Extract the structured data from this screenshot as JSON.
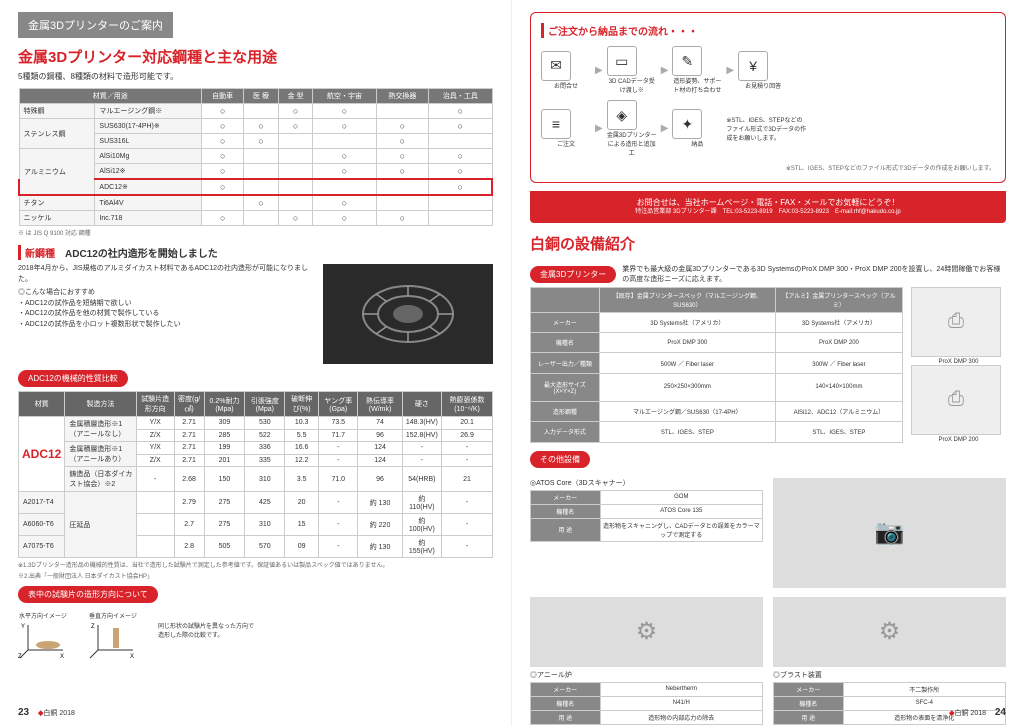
{
  "left": {
    "banner": "金属3Dプリンターのご案内",
    "title": "金属3Dプリンター対応鋼種と主な用途",
    "subtitle": "5種類の鋼種、8種類の材料で造形可能です。",
    "table1": {
      "headers": [
        "材質／用途",
        "自動車",
        "医 療",
        "金 型",
        "航空・宇宙",
        "熱交換器",
        "治具・工具"
      ],
      "rowgroups": [
        {
          "group": "特殊鋼",
          "rows": [
            [
              "マルエージング鋼※",
              "○",
              "",
              "○",
              "○",
              "",
              "○"
            ]
          ]
        },
        {
          "group": "ステンレス鋼",
          "rows": [
            [
              "SUS630(17-4PH)※",
              "○",
              "○",
              "○",
              "○",
              "○",
              "○"
            ],
            [
              "SUS316L",
              "○",
              "○",
              "",
              "",
              "○",
              ""
            ]
          ]
        },
        {
          "group": "アルミニウム",
          "rows": [
            [
              "AlSi10Mg",
              "○",
              "",
              "",
              "○",
              "○",
              "○"
            ],
            [
              "AlSi12※",
              "○",
              "",
              "",
              "○",
              "○",
              "○"
            ],
            [
              "ADC12※",
              "○",
              "",
              "",
              "",
              "",
              "○"
            ]
          ]
        },
        {
          "group": "チタン",
          "rows": [
            [
              "Ti6Al4V",
              "",
              "○",
              "",
              "○",
              "",
              ""
            ]
          ]
        },
        {
          "group": "ニッケル",
          "rows": [
            [
              "Inc.718",
              "○",
              "",
              "○",
              "○",
              "○",
              ""
            ]
          ]
        }
      ],
      "highlight_row": 5,
      "note": "※ は JIS Q 9100 対応 鋼種"
    },
    "section2": {
      "prefix": "新鋼種",
      "title": "ADC12の社内造形を開始しました",
      "text": "2018年4月から、JIS規格のアルミダイカスト材料であるADC12の社内造形が可能になりました。",
      "sub": "◎こんな場合におすすめ",
      "bullets": [
        "・ADC12の試作品を短納期で欲しい",
        "・ADC12の試作品を他の材質で製作している",
        "・ADC12の試作品を小ロット複数形状で製作したい"
      ]
    },
    "tab1": "ADC12の機械的性質比較",
    "table2": {
      "headers": [
        "材質",
        "製造方法",
        "試験片造形方向",
        "密度(g/㎤)",
        "0.2%耐力(Mpa)",
        "引張強度(Mpa)",
        "破断伸び(%)",
        "ヤング率(Gpa)",
        "熱伝導率(W/mk)",
        "硬さ",
        "熱膨張係数(10⁻⁶/K)"
      ],
      "material": "ADC12",
      "rows": [
        [
          "金属積層造形※1（アニールなし）",
          "Y/X",
          "2.71",
          "309",
          "530",
          "10.3",
          "73.5",
          "74",
          "148.3(HV)",
          "20.1"
        ],
        [
          "",
          "Z/X",
          "2.71",
          "285",
          "522",
          "5.5",
          "71.7",
          "96",
          "152.8(HV)",
          "26.9"
        ],
        [
          "金属積層造形※1（アニールあり）",
          "Y/X",
          "2.71",
          "199",
          "336",
          "16.6",
          "-",
          "124",
          "-",
          "-"
        ],
        [
          "",
          "Z/X",
          "2.71",
          "201",
          "335",
          "12.2",
          "-",
          "124",
          "-",
          "-"
        ],
        [
          "鋳造品（日本ダイカスト協会）※2",
          "-",
          "2.68",
          "150",
          "310",
          "3.5",
          "71.0",
          "96",
          "54(HRB)",
          "21"
        ]
      ],
      "extra": [
        [
          "A2017-T4",
          "圧延品",
          "",
          "2.79",
          "275",
          "425",
          "20",
          "-",
          "約 130",
          "約110(HV)",
          "-"
        ],
        [
          "A6060-T6",
          "",
          "",
          "2.7",
          "275",
          "310",
          "15",
          "-",
          "約 220",
          "約100(HV)",
          "-"
        ],
        [
          "A7075-T6",
          "",
          "",
          "2.8",
          "505",
          "570",
          "09",
          "-",
          "約 130",
          "約155(HV)",
          "-"
        ]
      ],
      "notes": [
        "※1.3Dプリンター造形品の機械的性質は、当社で造形した試験片で測定した参考値です。保証値あるいは製品スペック値ではありません。",
        "※2.出典「一般財団法人 日本ダイカスト協会HP」"
      ]
    },
    "tab2": "表中の試験片の造形方向について",
    "axis": {
      "h": "水平方向イメージ",
      "v": "垂直方向イメージ",
      "desc": "同じ形状の試験片を異なった方向で造形した際の比較です。"
    },
    "pagenum": "23"
  },
  "right": {
    "flow": {
      "title": "ご注文から納品までの流れ・・・",
      "steps1": [
        {
          "icon": "✉",
          "label": "お問合せ"
        },
        {
          "icon": "▭",
          "label": "3D CADデータ受け渡し※"
        },
        {
          "icon": "✎",
          "label": "造形姿勢、サポート材の打ち合わせ"
        },
        {
          "icon": "¥",
          "label": "お見積り回答"
        }
      ],
      "steps2": [
        {
          "icon": "≡",
          "label": "ご注文"
        },
        {
          "icon": "◈",
          "label": "金属3Dプリンターによる造形と追加工"
        },
        {
          "icon": "✦",
          "label": "納品"
        }
      ],
      "note": "※STL、IGES、STEPなどのファイル形式で3Dデータの作成をお願いします。"
    },
    "contact": {
      "line1": "お問合せは、当社ホームページ・電話・FAX・メールでお気軽にどうぞ！",
      "line2": "特注品営業部 3Dプリンター課　TEL:03-5223-8919　FAX:03-5223-8923　E-mail:rhf@hakudo.co.jp"
    },
    "equip_title": "白銅の設備紹介",
    "tab3": "金属3Dプリンター",
    "equip_desc": "業界でも最大級の金属3Dプリンターである3D SystemsのProX DMP 300・ProX DMP 200を設置し、24時間稼働でお客様の高度な造形ニーズに応えます。",
    "spec": {
      "headers": [
        "",
        "【既存】金属プリンタースペック（マルエージング鋼、SUS630）",
        "【アルミ】金属プリンタースペック（アルミ）"
      ],
      "rows": [
        [
          "メーカー",
          "3D Systems社（アメリカ）",
          "3D Systems社（アメリカ）"
        ],
        [
          "機種名",
          "ProX DMP 300",
          "ProX DMP 200"
        ],
        [
          "レーザー出力／種類",
          "500W ／ Fiber laser",
          "300W ／ Fiber laser"
        ],
        [
          "最大造形サイズ(X×Y×Z)",
          "250×250×300mm",
          "140×140×100mm"
        ],
        [
          "造形鋼種",
          "マルエージング鋼／SUS630（17-4PH）",
          "AlSi12、ADC12（アルミニウム）"
        ],
        [
          "入力データ形式",
          "STL、IGES、STEP",
          "STL、IGES、STEP"
        ]
      ],
      "printers": [
        "ProX DMP 300",
        "ProX DMP 200"
      ]
    },
    "tab4": "その他設備",
    "other": [
      {
        "title": "◎ATOS Core（3Dスキャナー）",
        "rows": [
          [
            "メーカー",
            "GOM"
          ],
          [
            "機種名",
            "ATOS Core 135"
          ],
          [
            "用 途",
            "造形物をスキャニングし、CADデータとの誤差をカラーマップで測定する"
          ]
        ]
      },
      {
        "title": "◎アニール炉",
        "rows": [
          [
            "メーカー",
            "Nebertherm"
          ],
          [
            "機種名",
            "N41/H"
          ],
          [
            "用 途",
            "造形物の内部応力の除去"
          ]
        ]
      },
      {
        "title": "◎ブラスト装置",
        "rows": [
          [
            "メーカー",
            "不二製作所"
          ],
          [
            "機種名",
            "SFC-4"
          ],
          [
            "用 途",
            "造形物の表面を清浄化"
          ]
        ]
      }
    ],
    "pagenum": "24"
  },
  "logo": {
    "brand": "白銅",
    "year": "2018"
  }
}
